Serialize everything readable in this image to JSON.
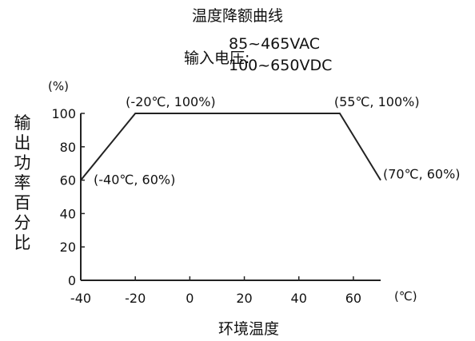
{
  "chart_data": {
    "type": "line",
    "title": "温度降额曲线",
    "input_voltage": {
      "label": "输入电压:",
      "lines": [
        "85~465VAC",
        "100~650VDC"
      ]
    },
    "xlabel": "环境温度",
    "ylabel": "输出功率百分比",
    "x_unit": "(℃)",
    "y_unit": "(%)",
    "xlim": [
      -40,
      70
    ],
    "ylim": [
      0,
      100
    ],
    "x_ticks": [
      -40,
      -20,
      0,
      20,
      40,
      60
    ],
    "y_ticks": [
      0,
      20,
      40,
      60,
      80,
      100
    ],
    "grid": false,
    "series": [
      {
        "x": [
          -40,
          -20,
          55,
          70
        ],
        "y": [
          60,
          100,
          100,
          60
        ],
        "color": "#222222"
      }
    ],
    "annotations": [
      {
        "text": "(-40℃, 60%)",
        "x": -40,
        "y": 60
      },
      {
        "text": "(-20℃, 100%)",
        "x": -20,
        "y": 100
      },
      {
        "text": "(55℃, 100%)",
        "x": 55,
        "y": 100
      },
      {
        "text": "(70℃, 60%)",
        "x": 70,
        "y": 60
      }
    ]
  }
}
